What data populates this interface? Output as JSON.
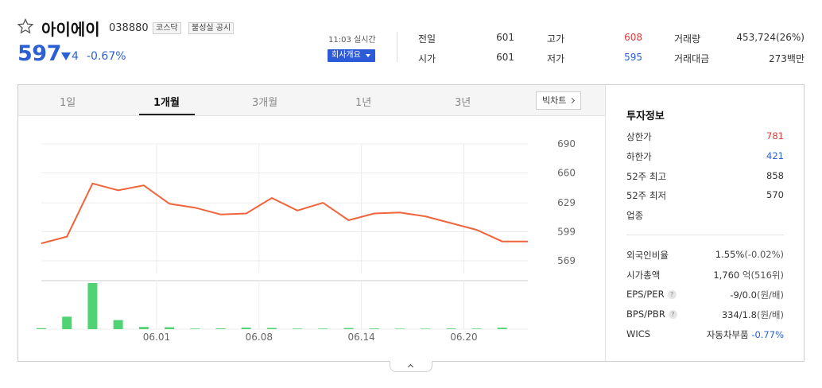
{
  "stock": {
    "name": "아이에이",
    "code": "038880",
    "tags": [
      "코스닥",
      "불성실 공시"
    ],
    "price": "597",
    "change": "4",
    "change_pct": "-0.67%",
    "time": "11:03 실시간",
    "company_button": "회사개요"
  },
  "quotes": {
    "prev_label": "전일",
    "prev_value": "601",
    "open_label": "시가",
    "open_value": "601",
    "high_label": "고가",
    "high_value": "608",
    "low_label": "저가",
    "low_value": "595",
    "volume_label": "거래량",
    "volume_value": "453,724(26%)",
    "amount_label": "거래대금",
    "amount_value": "273백만"
  },
  "colors": {
    "up": "#e23b3b",
    "down": "#2b5fd3",
    "line": "#f0643c",
    "volume": "#4fd373"
  },
  "tabs": [
    {
      "label": "1일",
      "active": false
    },
    {
      "label": "1개월",
      "active": true
    },
    {
      "label": "3개월",
      "active": false
    },
    {
      "label": "1년",
      "active": false
    },
    {
      "label": "3년",
      "active": false
    }
  ],
  "big_chart_button": "빅차트",
  "chart_data": {
    "type": "line",
    "title": "",
    "ylabel": "",
    "y_ticks": [
      690,
      660,
      629,
      599,
      569
    ],
    "ylim": [
      569,
      690
    ],
    "x_tick_labels": [
      "06.01",
      "06.08",
      "06.14",
      "06.20"
    ],
    "x_tick_index": [
      4.5,
      8.5,
      12.5,
      16.5
    ],
    "price": [
      587,
      594,
      649,
      642,
      647,
      628,
      624,
      617,
      618,
      634,
      621,
      629,
      611,
      618,
      619,
      615,
      608,
      601,
      589,
      589
    ],
    "volume": [
      1.0,
      13,
      48,
      9.5,
      2.3,
      2.0,
      0.6,
      0.8,
      1.6,
      1.3,
      0.6,
      0.6,
      1.2,
      0.7,
      0.5,
      0.5,
      0.7,
      0.6,
      1.5,
      0.0
    ]
  },
  "invest": {
    "title": "투자정보",
    "rows": [
      {
        "label": "상한가",
        "value": "781",
        "color": "up"
      },
      {
        "label": "하한가",
        "value": "421",
        "color": "down"
      },
      {
        "label": "52주 최고",
        "value": "858",
        "color": ""
      },
      {
        "label": "52주 최저",
        "value": "570",
        "color": ""
      },
      {
        "label": "업종",
        "value": "",
        "color": ""
      }
    ],
    "foreign_label": "외국인비율",
    "foreign_value": "1.55%",
    "foreign_change": "(-0.02%)",
    "mktcap_label": "시가총액",
    "mktcap_value": "1,760",
    "mktcap_unit": "억(516위)",
    "eps_label": "EPS/PER",
    "eps_value": "-9/0.0",
    "eps_unit": "(원/배)",
    "bps_label": "BPS/PBR",
    "bps_value": "334/1.8",
    "bps_unit": "(원/배)",
    "wics_label": "WICS",
    "wics_value": "자동차부품",
    "wics_change": "-0.77%"
  }
}
